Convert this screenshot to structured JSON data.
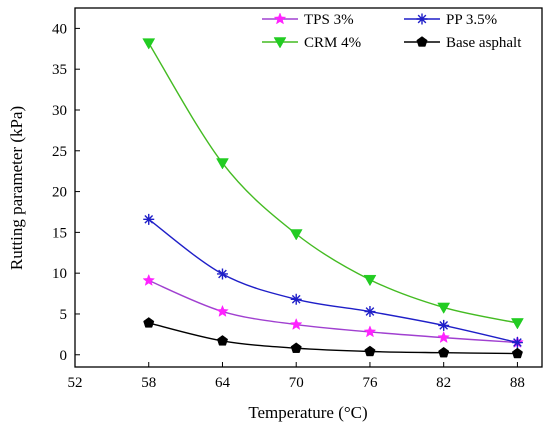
{
  "chart_data": {
    "type": "line",
    "xlabel": "Temperature (°C)",
    "ylabel": "Rutting parameter (kPa)",
    "x": [
      58,
      64,
      70,
      76,
      82,
      88
    ],
    "xticks": [
      52,
      58,
      64,
      70,
      76,
      82,
      88
    ],
    "yticks": [
      0,
      5,
      10,
      15,
      20,
      25,
      30,
      35,
      40
    ],
    "xlim": [
      52,
      90
    ],
    "ylim": [
      -1.5,
      42.5
    ],
    "grid": false,
    "legend_position": "top-right",
    "series": [
      {
        "name": "TPS 3%",
        "color": "#ff22ff",
        "line_color": "#a040d0",
        "marker": "star",
        "values": [
          9.1,
          5.3,
          3.7,
          2.8,
          2.1,
          1.5
        ]
      },
      {
        "name": "PP 3.5%",
        "color": "#1f1fc8",
        "line_color": "#1f1fc8",
        "marker": "asterisk",
        "values": [
          16.6,
          9.9,
          6.8,
          5.3,
          3.6,
          1.5
        ]
      },
      {
        "name": "CRM 4%",
        "color": "#22cc22",
        "line_color": "#44bb22",
        "marker": "triangle-down",
        "values": [
          38.2,
          23.5,
          14.8,
          9.2,
          5.8,
          3.9
        ]
      },
      {
        "name": "Base asphalt",
        "color": "#000000",
        "line_color": "#000000",
        "marker": "pentagon",
        "values": [
          3.9,
          1.7,
          0.8,
          0.4,
          0.25,
          0.15
        ]
      }
    ]
  }
}
